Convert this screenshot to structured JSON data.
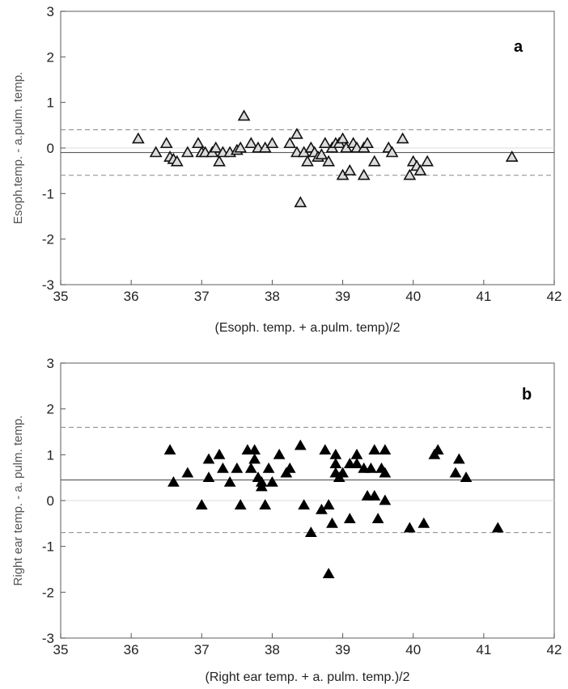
{
  "chart_data": [
    {
      "type": "scatter",
      "panel_label": "a",
      "xlabel": "(Esoph. temp. + a.pulm. temp)/2",
      "ylabel": "Esoph.temp. - a.pulm. temp.",
      "xlim": [
        35,
        42
      ],
      "ylim": [
        -3,
        3
      ],
      "xticks": [
        "35",
        "36",
        "37",
        "38",
        "39",
        "40",
        "41",
        "42"
      ],
      "yticks": [
        "-3",
        "-2",
        "-1",
        "0",
        "1",
        "2",
        "3"
      ],
      "mean_line": -0.1,
      "limits": [
        0.4,
        -0.6
      ],
      "marker": "open-triangle",
      "points": [
        [
          36.1,
          0.2
        ],
        [
          36.35,
          -0.1
        ],
        [
          36.5,
          0.1
        ],
        [
          36.55,
          -0.2
        ],
        [
          36.6,
          -0.25
        ],
        [
          36.65,
          -0.3
        ],
        [
          36.8,
          -0.1
        ],
        [
          36.95,
          0.1
        ],
        [
          37.0,
          -0.1
        ],
        [
          37.05,
          -0.1
        ],
        [
          37.15,
          -0.1
        ],
        [
          37.2,
          0.0
        ],
        [
          37.25,
          -0.3
        ],
        [
          37.3,
          -0.1
        ],
        [
          37.4,
          -0.1
        ],
        [
          37.5,
          -0.05
        ],
        [
          37.55,
          0.0
        ],
        [
          37.6,
          0.7
        ],
        [
          37.7,
          0.1
        ],
        [
          37.8,
          0.0
        ],
        [
          37.9,
          0.0
        ],
        [
          38.0,
          0.1
        ],
        [
          38.25,
          0.1
        ],
        [
          38.35,
          0.3
        ],
        [
          38.35,
          -0.1
        ],
        [
          38.4,
          -1.2
        ],
        [
          38.45,
          -0.1
        ],
        [
          38.5,
          -0.3
        ],
        [
          38.55,
          0.0
        ],
        [
          38.6,
          -0.1
        ],
        [
          38.65,
          -0.2
        ],
        [
          38.7,
          -0.15
        ],
        [
          38.75,
          0.1
        ],
        [
          38.8,
          -0.3
        ],
        [
          38.85,
          0.0
        ],
        [
          38.9,
          0.1
        ],
        [
          38.95,
          0.1
        ],
        [
          39.0,
          0.2
        ],
        [
          39.0,
          -0.6
        ],
        [
          39.05,
          0.0
        ],
        [
          39.1,
          -0.5
        ],
        [
          39.15,
          0.1
        ],
        [
          39.2,
          0.0
        ],
        [
          39.3,
          0.0
        ],
        [
          39.3,
          -0.6
        ],
        [
          39.35,
          0.1
        ],
        [
          39.45,
          -0.3
        ],
        [
          39.65,
          0.0
        ],
        [
          39.7,
          -0.1
        ],
        [
          39.85,
          0.2
        ],
        [
          39.95,
          -0.6
        ],
        [
          40.0,
          -0.3
        ],
        [
          40.05,
          -0.4
        ],
        [
          40.1,
          -0.5
        ],
        [
          40.2,
          -0.3
        ],
        [
          41.4,
          -0.2
        ]
      ]
    },
    {
      "type": "scatter",
      "panel_label": "b",
      "xlabel": "(Right ear temp. + a. pulm. temp.)/2",
      "ylabel": "Right ear temp. - a. pulm. temp.",
      "xlim": [
        35,
        42
      ],
      "ylim": [
        -3,
        3
      ],
      "xticks": [
        "35",
        "36",
        "37",
        "38",
        "39",
        "40",
        "41",
        "42"
      ],
      "yticks": [
        "-3",
        "-2",
        "-1",
        "0",
        "1",
        "2",
        "3"
      ],
      "mean_line": 0.45,
      "limits": [
        1.6,
        -0.7
      ],
      "marker": "filled-triangle",
      "points": [
        [
          36.55,
          1.1
        ],
        [
          36.6,
          0.4
        ],
        [
          36.8,
          0.6
        ],
        [
          37.0,
          -0.1
        ],
        [
          37.1,
          0.9
        ],
        [
          37.1,
          0.5
        ],
        [
          37.25,
          1.0
        ],
        [
          37.3,
          0.7
        ],
        [
          37.4,
          0.4
        ],
        [
          37.5,
          0.7
        ],
        [
          37.55,
          -0.1
        ],
        [
          37.65,
          1.1
        ],
        [
          37.7,
          0.7
        ],
        [
          37.75,
          0.9
        ],
        [
          37.75,
          1.1
        ],
        [
          37.8,
          0.5
        ],
        [
          37.85,
          0.4
        ],
        [
          37.85,
          0.3
        ],
        [
          37.9,
          -0.1
        ],
        [
          37.95,
          0.7
        ],
        [
          38.0,
          0.4
        ],
        [
          38.1,
          1.0
        ],
        [
          38.2,
          0.6
        ],
        [
          38.25,
          0.7
        ],
        [
          38.4,
          1.2
        ],
        [
          38.45,
          -0.1
        ],
        [
          38.55,
          -0.7
        ],
        [
          38.7,
          -0.2
        ],
        [
          38.75,
          1.1
        ],
        [
          38.8,
          -0.1
        ],
        [
          38.8,
          -1.6
        ],
        [
          38.85,
          -0.5
        ],
        [
          38.9,
          1.0
        ],
        [
          38.9,
          0.8
        ],
        [
          38.9,
          0.6
        ],
        [
          38.95,
          0.5
        ],
        [
          39.0,
          0.6
        ],
        [
          39.1,
          -0.4
        ],
        [
          39.1,
          0.8
        ],
        [
          39.2,
          1.0
        ],
        [
          39.2,
          0.8
        ],
        [
          39.3,
          0.7
        ],
        [
          39.35,
          0.1
        ],
        [
          39.4,
          0.7
        ],
        [
          39.45,
          1.1
        ],
        [
          39.45,
          0.1
        ],
        [
          39.5,
          -0.4
        ],
        [
          39.55,
          0.7
        ],
        [
          39.6,
          0.6
        ],
        [
          39.6,
          1.1
        ],
        [
          39.6,
          0.0
        ],
        [
          39.95,
          -0.6
        ],
        [
          40.15,
          -0.5
        ],
        [
          40.3,
          1.0
        ],
        [
          40.35,
          1.1
        ],
        [
          40.6,
          0.6
        ],
        [
          40.65,
          0.9
        ],
        [
          40.75,
          0.5
        ],
        [
          41.2,
          -0.6
        ]
      ]
    }
  ]
}
